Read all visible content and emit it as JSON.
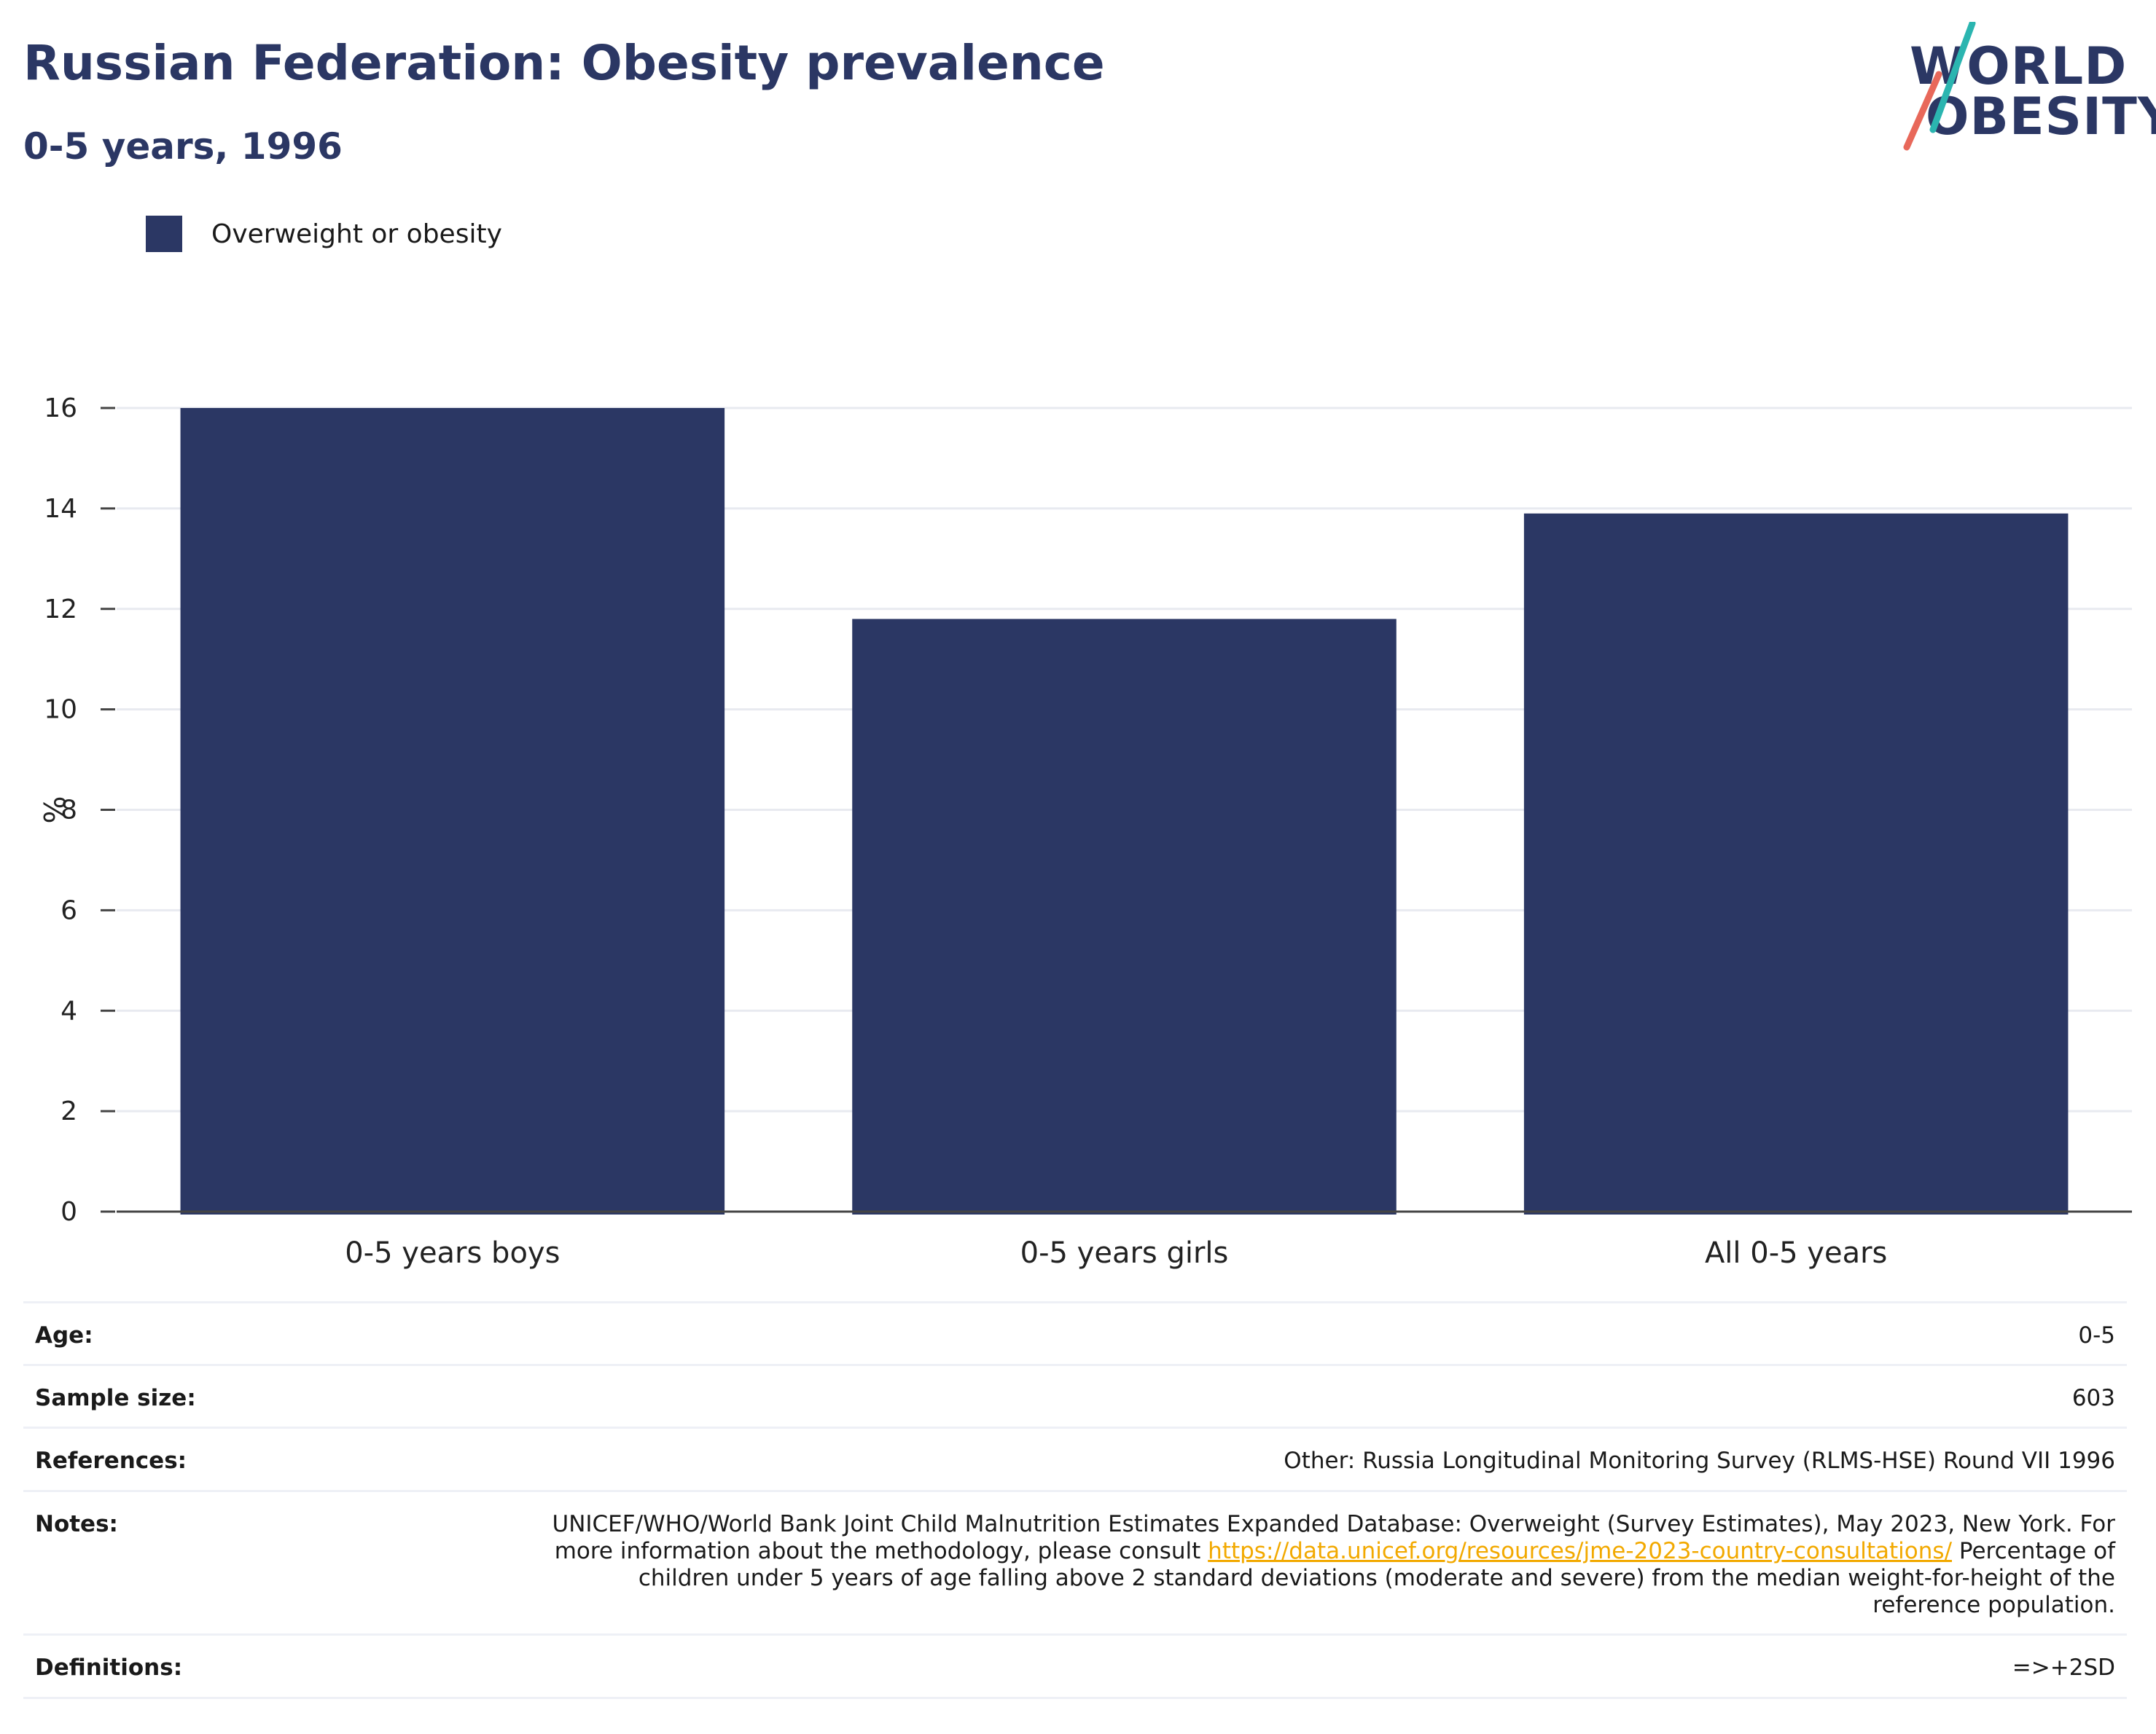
{
  "header": {
    "title": "Russian Federation: Obesity prevalence",
    "subtitle": "0-5 years, 1996"
  },
  "logo": {
    "line1": "WORLD",
    "line2": "OBESITY",
    "text_color": "#2b3764",
    "slash_top_color": "#2bb5b0",
    "slash_bottom_color": "#e8685a"
  },
  "legend": {
    "items": [
      {
        "label": "Overweight or obesity",
        "color": "#2b3764"
      }
    ]
  },
  "chart_data": {
    "type": "bar",
    "title": "Russian Federation: Obesity prevalence",
    "subtitle": "0-5 years, 1996",
    "xlabel": "",
    "ylabel": "%",
    "categories": [
      "0-5 years boys",
      "0-5 years girls",
      "All 0-5 years"
    ],
    "series": [
      {
        "name": "Overweight or obesity",
        "values": [
          16.0,
          11.8,
          13.9
        ],
        "color": "#2b3764"
      }
    ],
    "ylim": [
      0,
      16
    ],
    "yticks": [
      0,
      2,
      4,
      6,
      8,
      10,
      12,
      14,
      16
    ],
    "grid": true,
    "legend_position": "top-left"
  },
  "info": {
    "rows": [
      {
        "label": "Age:",
        "value": "0-5"
      },
      {
        "label": "Sample size:",
        "value": "603"
      },
      {
        "label": "References:",
        "value": "Other: Russia Longitudinal Monitoring Survey (RLMS-HSE) Round VII 1996"
      },
      {
        "label": "Notes:",
        "value_pre": "UNICEF/WHO/World Bank Joint Child Malnutrition Estimates Expanded Database: Overweight (Survey Estimates), May 2023, New York. For more information about the methodology, please consult ",
        "link": "https://data.unicef.org/resources/jme-2023-country-consultations/",
        "value_post": " Percentage of children under 5 years of age falling above 2 standard deviations (moderate and severe) from the median weight-for-height of the reference population."
      },
      {
        "label": "Definitions:",
        "value": "=>+2SD"
      }
    ]
  }
}
